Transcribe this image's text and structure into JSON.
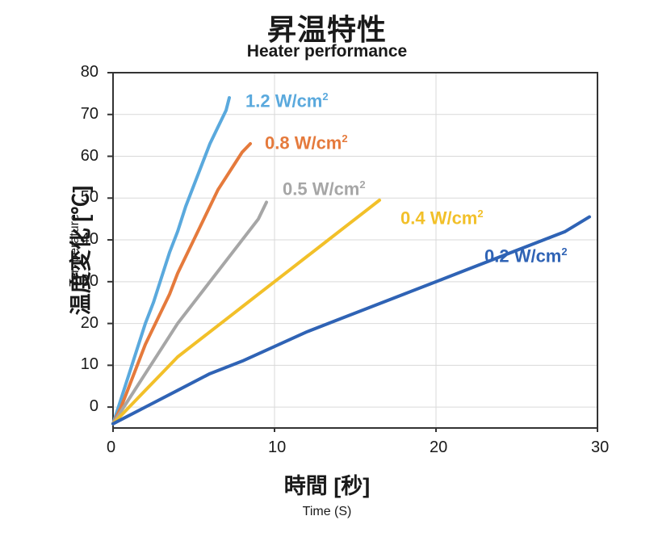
{
  "chart": {
    "type": "line",
    "title_main": "昇温特性",
    "title_sub": "Heater performance",
    "ylabel_main": "温度変化 [℃]",
    "ylabel_sub": "Temperature",
    "xlabel_main": "時間 [秒]",
    "xlabel_sub": "Time (S)",
    "xlim": [
      0,
      30
    ],
    "ylim": [
      -5,
      80
    ],
    "xtick_values": [
      0,
      10,
      20,
      30
    ],
    "ytick_values": [
      0,
      10,
      20,
      30,
      40,
      50,
      60,
      70,
      80
    ],
    "background_color": "#ffffff",
    "grid_color": "#d9d9d9",
    "axis_color": "#333333",
    "axis_width": 2,
    "grid_width": 1,
    "line_width": 4,
    "tick_fontsize": 20,
    "title_main_fontsize": 36,
    "title_sub_fontsize": 21,
    "axis_label_main_fontsize": 27,
    "axis_label_sub_fontsize": 16,
    "series_label_fontsize": 22,
    "series": [
      {
        "label": "1.2 W/cm²",
        "color": "#5aa9dd",
        "label_x": 8.2,
        "label_y": 73,
        "x": [
          0,
          0.5,
          1,
          1.5,
          2,
          2.5,
          3,
          3.5,
          4,
          4.5,
          5,
          5.5,
          6,
          6.5,
          7,
          7.2
        ],
        "y": [
          -4,
          2,
          8,
          14,
          20,
          25,
          31,
          37,
          42,
          48,
          53,
          58,
          63,
          67,
          71,
          74
        ]
      },
      {
        "label": "0.8 W/cm²",
        "color": "#e57a3c",
        "label_x": 9.4,
        "label_y": 63,
        "x": [
          0,
          0.5,
          1,
          1.5,
          2,
          2.5,
          3,
          3.5,
          4,
          4.5,
          5,
          5.5,
          6,
          6.5,
          7,
          7.5,
          8,
          8.5
        ],
        "y": [
          -4,
          0,
          5,
          10,
          15,
          19,
          23,
          27,
          32,
          36,
          40,
          44,
          48,
          52,
          55,
          58,
          61,
          63
        ]
      },
      {
        "label": "0.5 W/cm²",
        "color": "#a6a6a6",
        "label_x": 10.5,
        "label_y": 52,
        "x": [
          0,
          1,
          2,
          3,
          4,
          5,
          6,
          7,
          8,
          9,
          9.5
        ],
        "y": [
          -4,
          2,
          8,
          14,
          20,
          25,
          30,
          35,
          40,
          45,
          49
        ]
      },
      {
        "label": "0.4 W/cm²",
        "color": "#f2c029",
        "label_x": 17.8,
        "label_y": 45,
        "x": [
          0,
          1,
          2,
          3,
          4,
          5,
          6,
          7,
          8,
          9,
          10,
          11,
          12,
          13,
          14,
          15,
          16,
          16.5
        ],
        "y": [
          -4,
          0,
          4,
          8,
          12,
          15,
          18,
          21,
          24,
          27,
          30,
          33,
          36,
          39,
          42,
          45,
          48,
          49.5
        ]
      },
      {
        "label": "0.2 W/cm²",
        "color": "#2f63b5",
        "label_x": 23,
        "label_y": 36,
        "x": [
          0,
          2,
          4,
          6,
          8,
          10,
          12,
          14,
          16,
          18,
          20,
          22,
          24,
          26,
          28,
          29.5
        ],
        "y": [
          -4,
          0,
          4,
          8,
          11,
          14.5,
          18,
          21,
          24,
          27,
          30,
          33,
          36,
          39,
          42,
          45.5
        ]
      }
    ]
  }
}
